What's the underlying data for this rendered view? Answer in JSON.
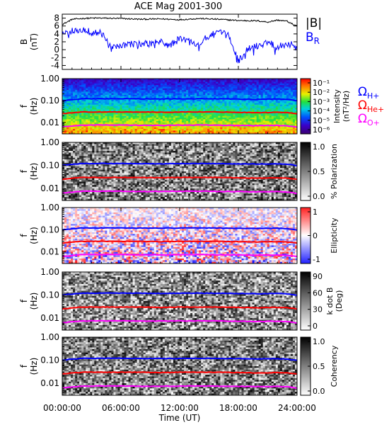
{
  "title": "ACE Mag 2001-300",
  "colors": {
    "frame": "#000000",
    "B_total": "#000000",
    "B_R": "#0000ff",
    "H_plus": "#0000ff",
    "He_plus": "#ff0000",
    "O_plus": "#ff00ff"
  },
  "x_axis": {
    "label": "Time (UT)",
    "ticks": [
      "00:00:00",
      "06:00:00",
      "12:00:00",
      "18:00:00",
      "24:00:00"
    ],
    "tick_hours": [
      0,
      6,
      12,
      18,
      24
    ],
    "range_hours": [
      0,
      24
    ]
  },
  "freq_axis": {
    "label": "f",
    "unit": "(Hz)",
    "ticks": [
      "1.00",
      "0.10",
      "0.01"
    ],
    "tick_values": [
      1.0,
      0.1,
      0.01
    ],
    "range": [
      0.003,
      1.0
    ],
    "scale": "log"
  },
  "gyro_labels": {
    "H": "Ω",
    "H_sub": "H+",
    "He": "Ω",
    "He_sub": "He+",
    "O": "Ω",
    "O_sub": "O+"
  },
  "chart_data": [
    {
      "type": "line",
      "panel": "magnetic-field",
      "ylabel": "B",
      "yunit": "(nT)",
      "yticks": [
        "8",
        "6",
        "4",
        "2",
        "0",
        "-2",
        "-4"
      ],
      "ytick_values": [
        8,
        6,
        4,
        2,
        0,
        -2,
        -4
      ],
      "ylim": [
        -5,
        9
      ],
      "legend": [
        {
          "text": "|B|",
          "color": "#000000"
        },
        {
          "text": "B",
          "sub": "R",
          "color": "#0000ff"
        }
      ],
      "series": [
        {
          "name": "|B|",
          "x_hours": [
            0,
            0.5,
            1,
            2,
            3,
            4,
            6,
            8,
            10,
            12,
            14,
            16,
            18,
            20,
            21,
            22,
            23,
            23.5,
            24
          ],
          "values": [
            6.4,
            7.0,
            7.7,
            7.9,
            8.0,
            8.0,
            7.9,
            7.7,
            7.8,
            7.6,
            7.9,
            7.7,
            7.4,
            7.3,
            7.0,
            7.5,
            7.2,
            6.5,
            6.0
          ]
        },
        {
          "name": "B_R",
          "x_hours": [
            0,
            0.5,
            1,
            2,
            3,
            4,
            5,
            6,
            7,
            8,
            9,
            10,
            11,
            12,
            13,
            14,
            15,
            16,
            17,
            18,
            19,
            20,
            21,
            22,
            23,
            24
          ],
          "values": [
            3.8,
            4.5,
            5.0,
            5.2,
            4.4,
            4.2,
            0.2,
            0.8,
            1.5,
            1.4,
            1.5,
            2.0,
            1.0,
            2.8,
            2.2,
            1.5,
            3.5,
            4.3,
            3.6,
            -2.8,
            0.2,
            1.0,
            2.0,
            0.8,
            1.5,
            1.0
          ]
        }
      ]
    },
    {
      "type": "heatmap",
      "panel": "intensity",
      "colorbar_label": "Intensity",
      "colorbar_unit": "(nT²/Hz)",
      "colorbar_ticks": [
        "10⁻¹",
        "10⁻²",
        "10⁻³",
        "10⁻⁴",
        "10⁻⁵",
        "10⁻⁶"
      ],
      "colorbar_scale": "log",
      "colorbar_range": [
        1e-06,
        0.1
      ]
    },
    {
      "type": "heatmap",
      "panel": "polarization",
      "colorbar_label": "% Polarization",
      "colorbar_ticks": [
        "1.0",
        "0.5",
        "0.0"
      ],
      "colorbar_range": [
        0,
        1
      ]
    },
    {
      "type": "heatmap",
      "panel": "ellipticity",
      "colorbar_label": "Ellipticity",
      "colorbar_ticks": [
        "1",
        "0",
        "-1"
      ],
      "colorbar_range": [
        -1,
        1
      ]
    },
    {
      "type": "heatmap",
      "panel": "k-dot-b",
      "colorbar_label": "k dot B",
      "colorbar_unit": "(Deg)",
      "colorbar_ticks": [
        "90",
        "60",
        "30",
        "0"
      ],
      "colorbar_range": [
        0,
        90
      ]
    },
    {
      "type": "heatmap",
      "panel": "coherency",
      "colorbar_label": "Coherency",
      "colorbar_ticks": [
        "1.0",
        "0.5",
        "0.0"
      ],
      "colorbar_range": [
        0,
        1
      ]
    }
  ],
  "gyrofrequencies": {
    "x_hours": [
      0,
      2,
      4,
      6,
      8,
      10,
      12,
      14,
      16,
      18,
      20,
      22,
      23,
      24
    ],
    "H_plus": [
      0.1,
      0.12,
      0.121,
      0.121,
      0.119,
      0.118,
      0.119,
      0.121,
      0.119,
      0.116,
      0.114,
      0.117,
      0.112,
      0.098
    ],
    "He_plus": [
      0.025,
      0.03,
      0.03,
      0.03,
      0.03,
      0.029,
      0.03,
      0.03,
      0.03,
      0.029,
      0.028,
      0.029,
      0.028,
      0.025
    ],
    "O_plus": [
      0.0062,
      0.0075,
      0.0076,
      0.0076,
      0.0074,
      0.0074,
      0.0075,
      0.0076,
      0.0074,
      0.0073,
      0.0071,
      0.0073,
      0.007,
      0.0061
    ]
  }
}
